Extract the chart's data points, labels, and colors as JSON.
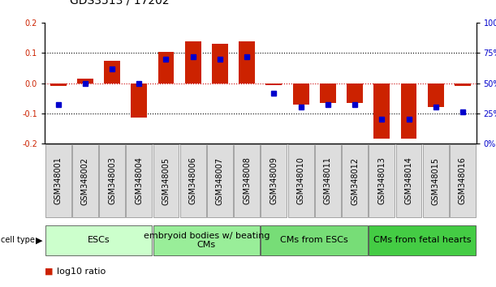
{
  "title": "GDS3513 / 17202",
  "samples": [
    "GSM348001",
    "GSM348002",
    "GSM348003",
    "GSM348004",
    "GSM348005",
    "GSM348006",
    "GSM348007",
    "GSM348008",
    "GSM348009",
    "GSM348010",
    "GSM348011",
    "GSM348012",
    "GSM348013",
    "GSM348014",
    "GSM348015",
    "GSM348016"
  ],
  "log10_ratio": [
    -0.01,
    0.015,
    0.075,
    -0.115,
    0.105,
    0.14,
    0.13,
    0.14,
    -0.005,
    -0.07,
    -0.065,
    -0.065,
    -0.185,
    -0.185,
    -0.08,
    -0.01
  ],
  "percentile_rank": [
    32,
    50,
    62,
    50,
    70,
    72,
    70,
    72,
    42,
    30,
    32,
    32,
    20,
    20,
    30,
    26
  ],
  "cell_types": [
    {
      "label": "ESCs",
      "start": 0,
      "end": 4,
      "color": "#ccffcc"
    },
    {
      "label": "embryoid bodies w/ beating\nCMs",
      "start": 4,
      "end": 8,
      "color": "#99ee99"
    },
    {
      "label": "CMs from ESCs",
      "start": 8,
      "end": 12,
      "color": "#77dd77"
    },
    {
      "label": "CMs from fetal hearts",
      "start": 12,
      "end": 16,
      "color": "#44cc44"
    }
  ],
  "ylim_left": [
    -0.2,
    0.2
  ],
  "ylim_right": [
    0,
    100
  ],
  "yticks_left": [
    -0.2,
    -0.1,
    0.0,
    0.1,
    0.2
  ],
  "yticks_right": [
    0,
    25,
    50,
    75,
    100
  ],
  "bar_color": "#cc2200",
  "dot_color": "#0000cc",
  "zero_line_color": "#cc0000",
  "dotted_line_color": "#000000",
  "bg_color": "#ffffff",
  "plot_bg_color": "#ffffff",
  "tick_label_color_left": "#cc2200",
  "tick_label_color_right": "#0000cc",
  "title_fontsize": 10,
  "tick_fontsize": 7,
  "label_fontsize": 8,
  "cell_type_fontsize": 8,
  "bar_width": 0.6
}
